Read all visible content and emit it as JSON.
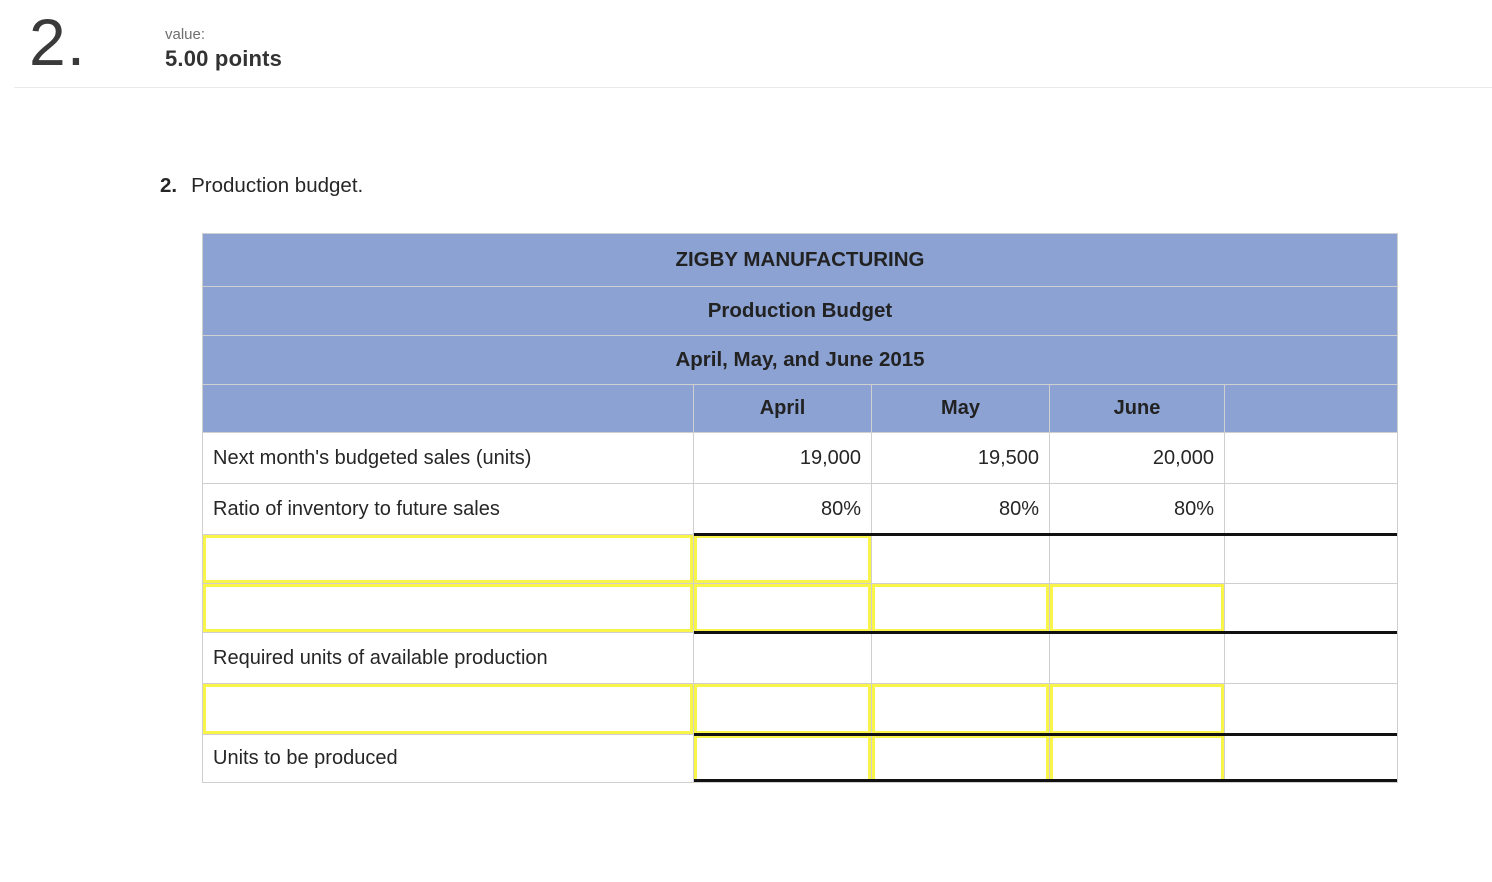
{
  "header": {
    "question_number": "2.",
    "value_label": "value:",
    "points": "5.00 points"
  },
  "task": {
    "number": "2.",
    "title": "Production budget."
  },
  "table": {
    "company": "ZIGBY MANUFACTURING",
    "report": "Production Budget",
    "period": "April, May, and June 2015",
    "col_headers": [
      "April",
      "May",
      "June"
    ],
    "rows": [
      {
        "label": "Next month's budgeted sales (units)",
        "values": [
          "19,000",
          "19,500",
          "20,000"
        ]
      },
      {
        "label": "Ratio of inventory to future sales",
        "values": [
          "80%",
          "80%",
          "80%"
        ]
      },
      {
        "label": "",
        "values": [
          "",
          "",
          ""
        ]
      },
      {
        "label": "",
        "values": [
          "",
          "",
          ""
        ]
      },
      {
        "label": "Required units of available production",
        "values": [
          "",
          "",
          ""
        ]
      },
      {
        "label": "",
        "values": [
          "",
          "",
          ""
        ]
      },
      {
        "label": "Units to be produced",
        "values": [
          "",
          "",
          ""
        ]
      }
    ],
    "colors": {
      "header_bg": "#8BA2D3",
      "input_border": "#F8F44A",
      "grid_line": "#CFCFCF",
      "rule_black": "#111111"
    }
  }
}
